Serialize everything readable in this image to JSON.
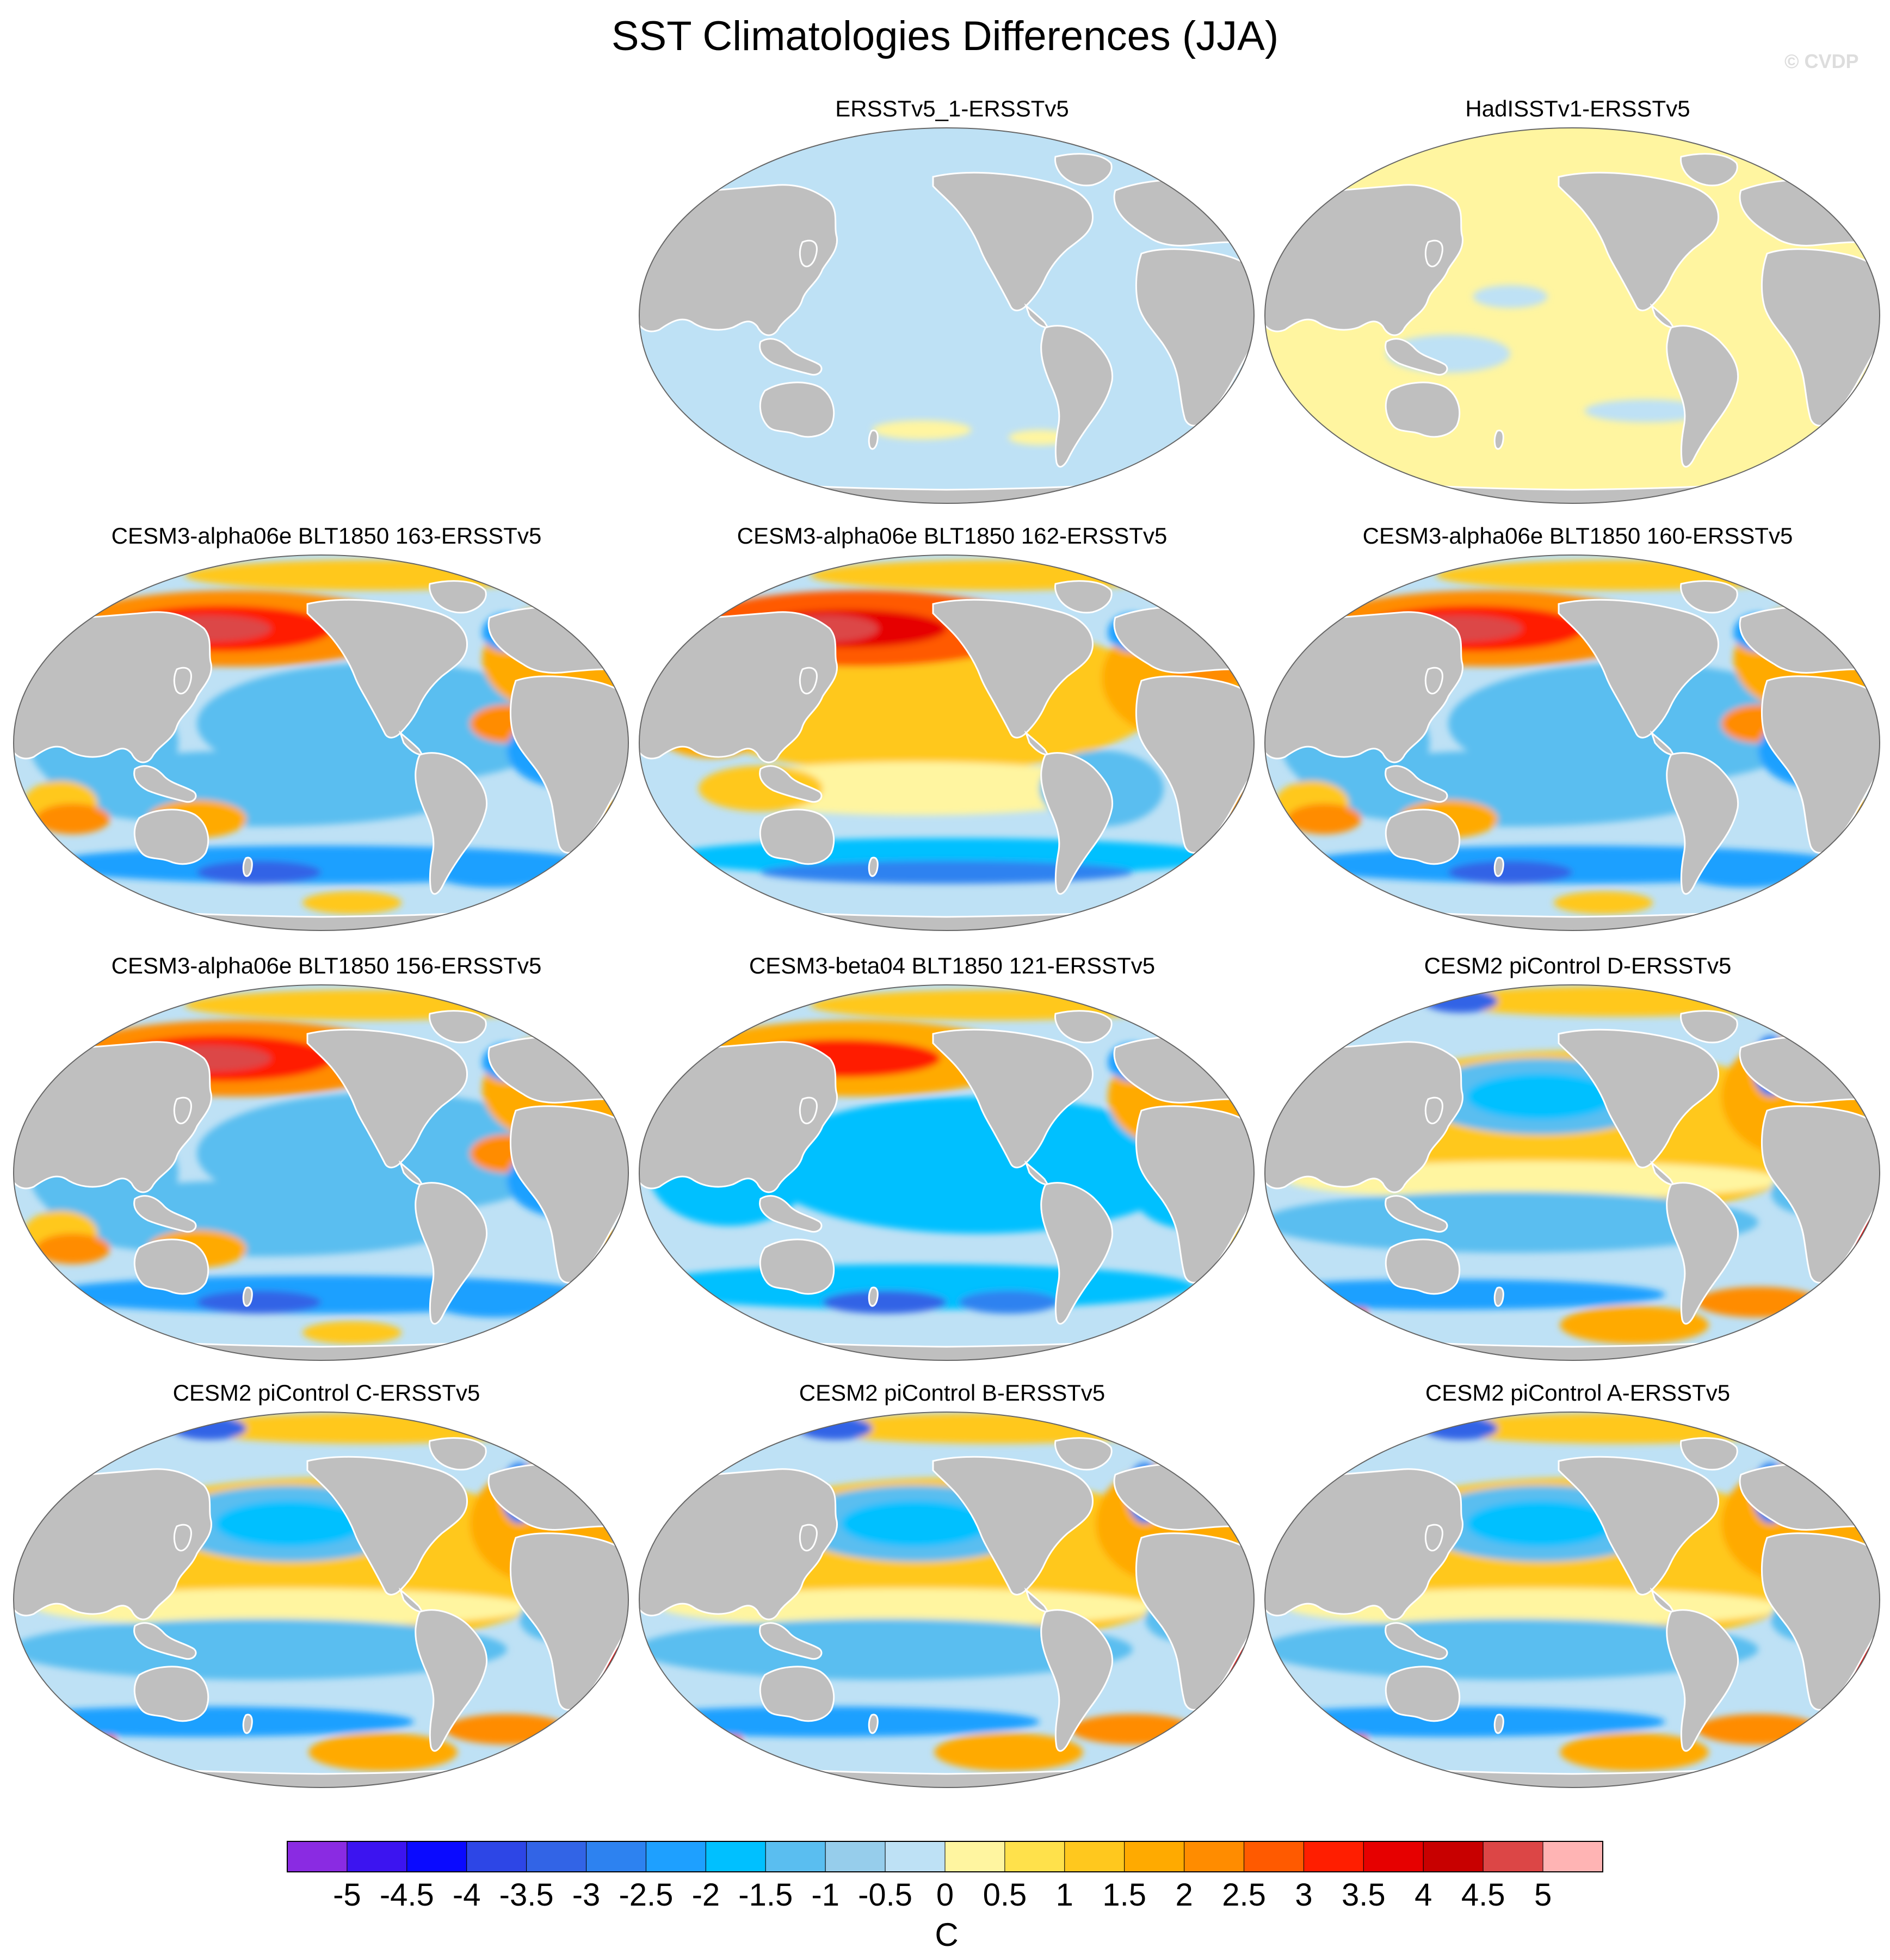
{
  "title": "SST Climatologies Differences (JJA)",
  "watermark": "© CVDP",
  "chart_data": {
    "type": "heatmap",
    "projection": "robinson-like (Pacific-centered global maps)",
    "colors": {
      "land": "#bfbfbf",
      "missing_ocean": "#ffffff",
      "frame": "#666666"
    },
    "panels": [
      {
        "id": "p1",
        "title": "ERSSTv5_1-ERSSTv5",
        "pattern": "uniform_neg"
      },
      {
        "id": "p2",
        "title": "HadISSTv1-ERSSTv5",
        "pattern": "uniform_pos"
      },
      {
        "id": "p3",
        "title": "CESM3-alpha06e BLT1850 163-ERSSTv5",
        "pattern": "cesm3"
      },
      {
        "id": "p4",
        "title": "CESM3-alpha06e BLT1850 162-ERSSTv5",
        "pattern": "cesm3_warm"
      },
      {
        "id": "p5",
        "title": "CESM3-alpha06e BLT1850 160-ERSSTv5",
        "pattern": "cesm3"
      },
      {
        "id": "p6",
        "title": "CESM3-alpha06e BLT1850 156-ERSSTv5",
        "pattern": "cesm3"
      },
      {
        "id": "p7",
        "title": "CESM3-beta04 BLT1850 121-ERSSTv5",
        "pattern": "cesm3_cool"
      },
      {
        "id": "p8",
        "title": "CESM2 piControl D-ERSSTv5",
        "pattern": "cesm2"
      },
      {
        "id": "p9",
        "title": "CESM2 piControl C-ERSSTv5",
        "pattern": "cesm2"
      },
      {
        "id": "p10",
        "title": "CESM2 piControl B-ERSSTv5",
        "pattern": "cesm2"
      },
      {
        "id": "p11",
        "title": "CESM2 piControl A-ERSSTv5",
        "pattern": "cesm2"
      }
    ],
    "colorbar": {
      "units": "C",
      "levels": [
        "-5",
        "-4.5",
        "-4",
        "-3.5",
        "-3",
        "-2.5",
        "-2",
        "-1.5",
        "-1",
        "-0.5",
        "0",
        "0.5",
        "1",
        "1.5",
        "2",
        "2.5",
        "3",
        "3.5",
        "4",
        "4.5",
        "5"
      ],
      "colors": [
        "#8a2be2",
        "#3c14f0",
        "#0a0aff",
        "#2d46e6",
        "#3264e6",
        "#2d82f0",
        "#1ea0ff",
        "#00c0ff",
        "#5abef0",
        "#96cdeb",
        "#bee1f5",
        "#fff5a0",
        "#ffe14b",
        "#ffc81e",
        "#ffaa00",
        "#ff8c00",
        "#ff5a00",
        "#ff1e00",
        "#e60000",
        "#c80000",
        "#dc4646",
        "#ffb4b4"
      ]
    }
  }
}
